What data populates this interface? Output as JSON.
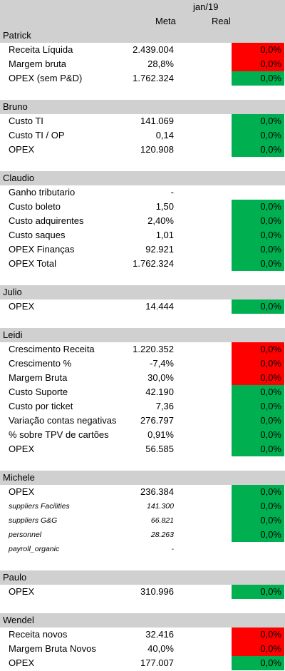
{
  "header": {
    "period": "jan/19",
    "meta_label": "Meta",
    "real_label": "Real"
  },
  "sections": [
    {
      "name": "Patrick",
      "rows": [
        {
          "label": "Receita Líquida",
          "meta": "2.439.004",
          "real": "0,0%",
          "status": "red"
        },
        {
          "label": "Margem bruta",
          "meta": "28,8%",
          "real": "0,0%",
          "status": "red"
        },
        {
          "label": "OPEX (sem P&D)",
          "meta": "1.762.324",
          "real": "0,0%",
          "status": "green"
        }
      ]
    },
    {
      "name": "Bruno",
      "rows": [
        {
          "label": "Custo TI",
          "meta": "141.069",
          "real": "0,0%",
          "status": "green"
        },
        {
          "label": "Custo TI / OP",
          "meta": "0,14",
          "real": "0,0%",
          "status": "green"
        },
        {
          "label": "OPEX",
          "meta": "120.908",
          "real": "0,0%",
          "status": "green"
        }
      ]
    },
    {
      "name": "Claudio",
      "rows": [
        {
          "label": "Ganho tributario",
          "meta": "-",
          "real": "",
          "status": "none"
        },
        {
          "label": "Custo boleto",
          "meta": "1,50",
          "real": "0,0%",
          "status": "green"
        },
        {
          "label": "Custo adquirentes",
          "meta": "2,40%",
          "real": "0,0%",
          "status": "green"
        },
        {
          "label": "Custo saques",
          "meta": "1,01",
          "real": "0,0%",
          "status": "green"
        },
        {
          "label": "OPEX Finanças",
          "meta": "92.921",
          "real": "0,0%",
          "status": "green"
        },
        {
          "label": "OPEX Total",
          "meta": "1.762.324",
          "real": "0,0%",
          "status": "green"
        }
      ]
    },
    {
      "name": "Julio",
      "rows": [
        {
          "label": "OPEX",
          "meta": "14.444",
          "real": "0,0%",
          "status": "green"
        }
      ]
    },
    {
      "name": "Leidi",
      "rows": [
        {
          "label": "Crescimento Receita",
          "meta": "1.220.352",
          "real": "0,0%",
          "status": "red"
        },
        {
          "label": "Crescimento %",
          "meta": "-7,4%",
          "real": "0,0%",
          "status": "red"
        },
        {
          "label": "Margem Bruta",
          "meta": "30,0%",
          "real": "0,0%",
          "status": "red"
        },
        {
          "label": "Custo Suporte",
          "meta": "42.190",
          "real": "0,0%",
          "status": "green"
        },
        {
          "label": "Custo por ticket",
          "meta": "7,36",
          "real": "0,0%",
          "status": "green"
        },
        {
          "label": "Variação contas negativas",
          "meta": "276.797",
          "real": "0,0%",
          "status": "green"
        },
        {
          "label": "% sobre TPV de cartões",
          "meta": "0,91%",
          "real": "0,0%",
          "status": "green"
        },
        {
          "label": "OPEX",
          "meta": "56.585",
          "real": "0,0%",
          "status": "green"
        }
      ]
    },
    {
      "name": "Michele",
      "rows": [
        {
          "label": "OPEX",
          "meta": "236.384",
          "real": "0,0%",
          "status": "green"
        },
        {
          "label": "suppliers Facilities",
          "meta": "141.300",
          "real": "0,0%",
          "status": "green",
          "small": true
        },
        {
          "label": "suppliers G&G",
          "meta": "66.821",
          "real": "0,0%",
          "status": "green",
          "small": true
        },
        {
          "label": "personnel",
          "meta": "28.263",
          "real": "0,0%",
          "status": "green",
          "small": true
        },
        {
          "label": "payroll_organic",
          "meta": "-",
          "real": "",
          "status": "none",
          "small": true
        }
      ]
    },
    {
      "name": "Paulo",
      "rows": [
        {
          "label": "OPEX",
          "meta": "310.996",
          "real": "0,0%",
          "status": "green"
        }
      ]
    },
    {
      "name": "Wendel",
      "rows": [
        {
          "label": "Receita novos",
          "meta": "32.416",
          "real": "0,0%",
          "status": "red"
        },
        {
          "label": "Margem Bruta Novos",
          "meta": "40,0%",
          "real": "0,0%",
          "status": "red"
        },
        {
          "label": "OPEX",
          "meta": "177.007",
          "real": "0,0%",
          "status": "green"
        }
      ]
    }
  ]
}
